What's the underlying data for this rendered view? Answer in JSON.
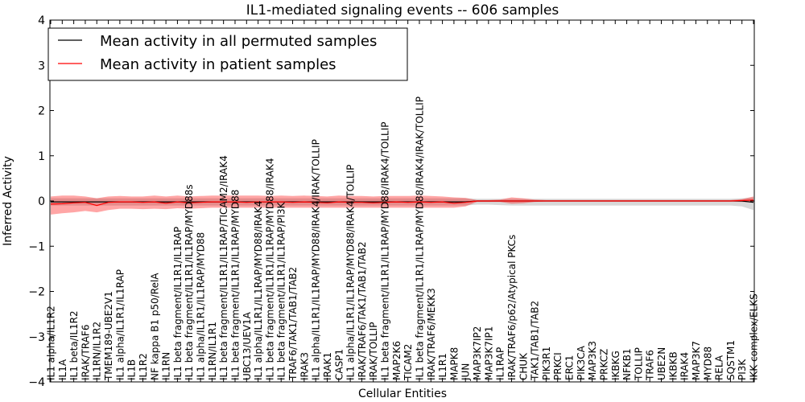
{
  "chart_data": {
    "type": "line",
    "title": "IL1-mediated signaling events -- 606 samples",
    "xlabel": "Cellular Entities",
    "ylabel": "Inferred Activity",
    "ylim": [
      -4,
      4
    ],
    "yticks": [
      -4,
      -3,
      -2,
      -1,
      0,
      1,
      2,
      3,
      4
    ],
    "ytick_labels": [
      "−4",
      "−3",
      "−2",
      "−1",
      "0",
      "1",
      "2",
      "3",
      "4"
    ],
    "grid": false,
    "legend": {
      "placement": "top-left",
      "entries": [
        "Mean activity in all permuted samples",
        "Mean activity in patient samples"
      ]
    },
    "categories": [
      "IL1 alpha/IL1R2",
      "IL1A",
      "IL1 beta/IL1R2",
      "IRAK/TRAF6",
      "IL1RN/IL1R2",
      "TMEM189-UBE2V1",
      "IL1 alpha/IL1R1/IL1RAP",
      "IL1B",
      "IL1R2",
      "NF kappa B1 p50/RelA",
      "IL1RN",
      "IL1 beta fragment/IL1R1/IL1RAP",
      "IL1 beta fragment/IL1R1/IL1RAP/MYD88s",
      "IL1 alpha/IL1R1/IL1RAP/MYD88",
      "IL1RN/IL1R1",
      "IL1 beta fragment/IL1R1/IL1RAP/TICAM2/IRAK4",
      "IL1 beta fragment/IL1R1/IL1RAP/MYD88",
      "UBC13/UEV1A",
      "IL1 alpha/IL1R1/IL1RAP/MYD88/IRAK4",
      "IL1 beta fragment/IL1R1/IL1RAP/MYD88/IRAK4",
      "IL1 beta fragment/IL1R1/IL1RAP/PI3K",
      "TRAF6/TAK1/TAB1/TAB2",
      "IRAK3",
      "IL1 alpha/IL1R1/IL1RAP/MYD88/IRAK4/IRAK/TOLLIP",
      "IRAK1",
      "CASP1",
      "IL1 alpha/IL1R1/IL1RAP/MYD88/IRAK4/TOLLIP",
      "IRAK/TRAF6/TAK1/TAB1/TAB2",
      "IRAK/TOLLIP",
      "IL1 beta fragment/IL1R1/IL1RAP/MYD88/IRAK4/TOLLIP",
      "MAP2K6",
      "TICAM2",
      "IL1 beta fragment/IL1R1/IL1RAP/MYD88/IRAK4/IRAK/TOLLIP",
      "IRAK/TRAF6/MEKK3",
      "IL1R1",
      "MAPK8",
      "JUN",
      "MAP3K7IP2",
      "MAP3K7IP1",
      "IL1RAP",
      "IRAK/TRAF6/p62/Atypical PKCs",
      "CHUK",
      "TAK1/TAB1/TAB2",
      "PIK3R1",
      "PRKCI",
      "ERC1",
      "PIK3CA",
      "MAP3K3",
      "PRKCZ",
      "IKBKG",
      "NFKB1",
      "TOLLIP",
      "TRAF6",
      "UBE2N",
      "IKBKB",
      "IRAK4",
      "MAP3K7",
      "MYD88",
      "RELA",
      "SQSTM1",
      "PI3K",
      "IKK complex/ELKS"
    ],
    "series": [
      {
        "name": "Mean activity in all permuted samples",
        "color": "#000000",
        "band_color": "#c8c8c8",
        "values": [
          -0.02,
          -0.02,
          -0.02,
          -0.02,
          -0.02,
          -0.02,
          -0.02,
          -0.02,
          -0.02,
          -0.02,
          -0.02,
          -0.02,
          -0.02,
          -0.02,
          -0.02,
          -0.02,
          -0.02,
          -0.02,
          -0.02,
          -0.02,
          -0.02,
          -0.02,
          -0.02,
          -0.02,
          -0.02,
          -0.02,
          -0.02,
          -0.02,
          -0.02,
          -0.02,
          -0.02,
          -0.02,
          -0.02,
          -0.02,
          -0.02,
          -0.02,
          -0.02,
          0.0,
          0.0,
          0.0,
          0.0,
          0.0,
          0.0,
          0.0,
          0.0,
          0.0,
          0.0,
          0.0,
          0.0,
          0.0,
          0.0,
          0.0,
          0.0,
          0.0,
          0.0,
          0.0,
          0.0,
          0.0,
          0.0,
          0.0,
          0.0,
          -0.03
        ],
        "lower": [
          -0.1,
          -0.1,
          -0.1,
          -0.1,
          -0.1,
          -0.1,
          -0.1,
          -0.1,
          -0.1,
          -0.1,
          -0.1,
          -0.1,
          -0.1,
          -0.1,
          -0.1,
          -0.1,
          -0.1,
          -0.1,
          -0.1,
          -0.1,
          -0.1,
          -0.1,
          -0.1,
          -0.1,
          -0.1,
          -0.1,
          -0.1,
          -0.1,
          -0.1,
          -0.1,
          -0.1,
          -0.1,
          -0.1,
          -0.1,
          -0.1,
          -0.1,
          -0.1,
          -0.08,
          -0.08,
          -0.09,
          -0.1,
          -0.1,
          -0.1,
          -0.1,
          -0.1,
          -0.1,
          -0.1,
          -0.1,
          -0.1,
          -0.1,
          -0.1,
          -0.1,
          -0.1,
          -0.1,
          -0.1,
          -0.1,
          -0.1,
          -0.1,
          -0.1,
          -0.1,
          -0.12,
          -0.2
        ],
        "upper": [
          0.06,
          0.06,
          0.06,
          0.06,
          0.06,
          0.06,
          0.06,
          0.06,
          0.06,
          0.06,
          0.06,
          0.06,
          0.06,
          0.06,
          0.06,
          0.06,
          0.06,
          0.06,
          0.06,
          0.06,
          0.06,
          0.06,
          0.06,
          0.06,
          0.06,
          0.06,
          0.06,
          0.06,
          0.06,
          0.06,
          0.06,
          0.06,
          0.06,
          0.06,
          0.06,
          0.06,
          0.06,
          0.05,
          0.05,
          0.05,
          0.05,
          0.05,
          0.05,
          0.05,
          0.05,
          0.05,
          0.05,
          0.05,
          0.05,
          0.05,
          0.05,
          0.05,
          0.05,
          0.05,
          0.05,
          0.05,
          0.05,
          0.05,
          0.05,
          0.05,
          0.06,
          0.08
        ]
      },
      {
        "name": "Mean activity in patient samples",
        "color": "#ff0000",
        "band_color": "#ff0000",
        "values": [
          -0.07,
          -0.06,
          -0.04,
          -0.03,
          -0.1,
          -0.03,
          -0.02,
          -0.02,
          -0.03,
          -0.02,
          -0.05,
          -0.02,
          -0.04,
          -0.03,
          -0.02,
          -0.02,
          -0.02,
          -0.03,
          -0.02,
          -0.02,
          -0.02,
          -0.03,
          -0.02,
          -0.03,
          -0.04,
          -0.02,
          -0.03,
          -0.03,
          -0.04,
          -0.03,
          -0.02,
          -0.03,
          -0.02,
          -0.03,
          -0.02,
          -0.05,
          -0.03,
          0.0,
          0.0,
          0.0,
          0.0,
          0.0,
          0.0,
          0.0,
          0.0,
          0.0,
          0.0,
          0.0,
          0.0,
          0.0,
          0.0,
          0.0,
          0.0,
          0.0,
          0.0,
          0.0,
          0.0,
          0.0,
          0.0,
          0.0,
          0.01,
          0.02
        ],
        "lower": [
          -0.3,
          -0.27,
          -0.25,
          -0.22,
          -0.25,
          -0.2,
          -0.17,
          -0.17,
          -0.18,
          -0.17,
          -0.18,
          -0.16,
          -0.17,
          -0.16,
          -0.15,
          -0.15,
          -0.15,
          -0.15,
          -0.15,
          -0.15,
          -0.15,
          -0.15,
          -0.15,
          -0.15,
          -0.15,
          -0.15,
          -0.15,
          -0.15,
          -0.15,
          -0.15,
          -0.15,
          -0.15,
          -0.15,
          -0.15,
          -0.15,
          -0.15,
          -0.12,
          -0.02,
          -0.02,
          -0.02,
          -0.06,
          -0.05,
          -0.02,
          -0.01,
          -0.01,
          -0.01,
          -0.01,
          -0.01,
          -0.01,
          -0.01,
          -0.01,
          -0.01,
          -0.01,
          -0.01,
          -0.01,
          -0.01,
          -0.01,
          -0.01,
          -0.01,
          -0.01,
          -0.02,
          -0.03
        ],
        "upper": [
          0.1,
          0.12,
          0.12,
          0.1,
          0.06,
          0.1,
          0.11,
          0.1,
          0.1,
          0.12,
          0.1,
          0.12,
          0.1,
          0.11,
          0.12,
          0.12,
          0.12,
          0.12,
          0.12,
          0.11,
          0.12,
          0.11,
          0.12,
          0.11,
          0.1,
          0.12,
          0.11,
          0.11,
          0.1,
          0.11,
          0.11,
          0.11,
          0.12,
          0.11,
          0.1,
          0.08,
          0.07,
          0.02,
          0.02,
          0.03,
          0.08,
          0.06,
          0.03,
          0.02,
          0.02,
          0.02,
          0.02,
          0.02,
          0.02,
          0.02,
          0.02,
          0.02,
          0.02,
          0.02,
          0.02,
          0.02,
          0.02,
          0.02,
          0.02,
          0.02,
          0.04,
          0.1
        ]
      }
    ]
  }
}
